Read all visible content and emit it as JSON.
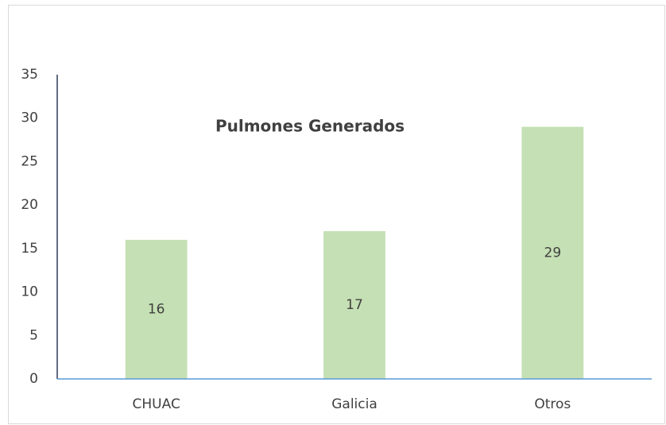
{
  "chart_data": {
    "type": "bar",
    "title": "Pulmones Generados",
    "categories": [
      "CHUAC",
      "Galicia",
      "Otros"
    ],
    "values": [
      16,
      17,
      29
    ],
    "color": "#c5e0b4",
    "ylim": [
      0,
      35
    ],
    "yticks": [
      0,
      5,
      10,
      15,
      20,
      25,
      30,
      35
    ],
    "grid": false
  }
}
